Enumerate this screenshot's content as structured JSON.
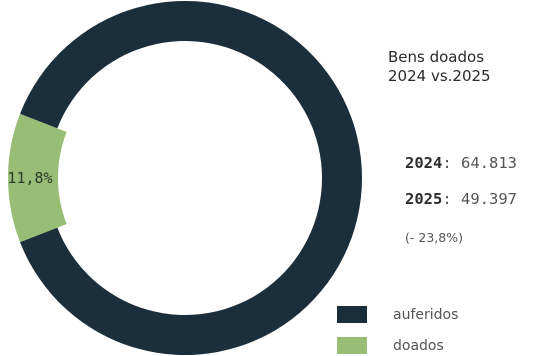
{
  "chart_data": {
    "type": "pie",
    "title": [
      "Bens doados",
      "2024 vs.2025"
    ],
    "categories": [
      "auferidos",
      "doados"
    ],
    "values": [
      88.2,
      11.8
    ],
    "slice_labels": [
      "",
      "11,8%"
    ],
    "colors": [
      "#1b2e3c",
      "#98bd76"
    ],
    "legend_position": "bottom-right",
    "annotations": {
      "year_2024": "2024",
      "value_2024": "64.813",
      "year_2025": "2025",
      "value_2025": "49.397",
      "change": "(- 23,8%)"
    }
  }
}
